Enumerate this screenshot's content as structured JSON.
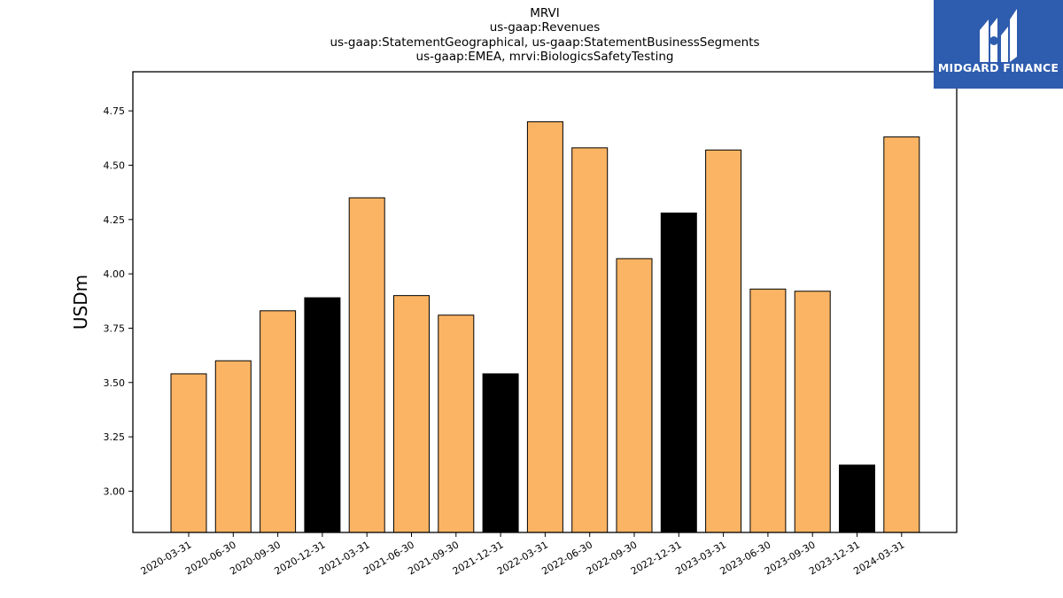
{
  "chart_data": {
    "type": "bar",
    "title": [
      "MRVI",
      "us-gaap:Revenues",
      "us-gaap:StatementGeographical, us-gaap:StatementBusinessSegments",
      "us-gaap:EMEA, mrvi:BiologicsSafetyTesting"
    ],
    "ylabel": "USDm",
    "xlabel": "",
    "ylim": [
      2.81,
      4.93
    ],
    "yticks": [
      "3.00",
      "3.25",
      "3.50",
      "3.75",
      "4.00",
      "4.25",
      "4.50",
      "4.75"
    ],
    "categories": [
      "2020-03-31",
      "2020-06-30",
      "2020-09-30",
      "2020-12-31",
      "2021-03-31",
      "2021-06-30",
      "2021-09-30",
      "2021-12-31",
      "2022-03-31",
      "2022-06-30",
      "2022-09-30",
      "2022-12-31",
      "2023-03-31",
      "2023-06-30",
      "2023-09-30",
      "2023-12-31",
      "2024-03-31"
    ],
    "values": [
      3.54,
      3.6,
      3.83,
      3.89,
      4.35,
      3.9,
      3.81,
      3.54,
      4.7,
      4.58,
      4.07,
      4.28,
      4.57,
      3.93,
      3.92,
      3.12,
      4.63
    ],
    "bar_colors": [
      "#fbb463",
      "#fbb463",
      "#fbb463",
      "#000000",
      "#fbb463",
      "#fbb463",
      "#fbb463",
      "#000000",
      "#fbb463",
      "#fbb463",
      "#fbb463",
      "#000000",
      "#fbb463",
      "#fbb463",
      "#fbb463",
      "#000000",
      "#fbb463"
    ],
    "grid": false,
    "legend": "none"
  },
  "logo": {
    "text": "MIDGARD FINANCE",
    "background": "#2e5cae",
    "foreground": "#ffffff"
  }
}
